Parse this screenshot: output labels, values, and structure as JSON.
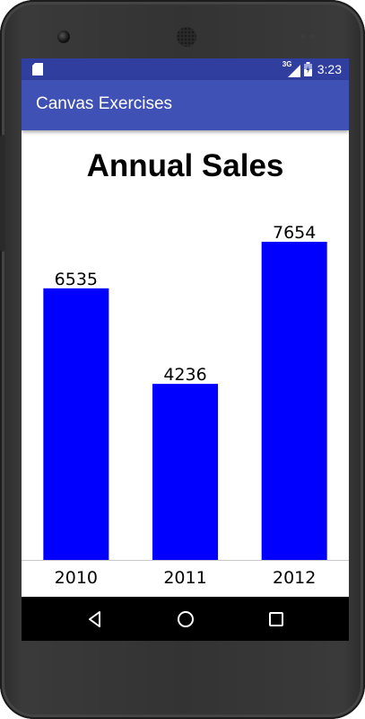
{
  "status_bar": {
    "network": "3G",
    "time": "3:23"
  },
  "app_bar": {
    "title": "Canvas Exercises"
  },
  "icons": {
    "sd_card": "sd-card-icon",
    "signal": "signal-icon",
    "battery": "battery-icon",
    "back": "back-icon",
    "home": "home-icon",
    "recents": "recents-icon"
  },
  "colors": {
    "status_bar": "#303f9f",
    "app_bar": "#3f51b5",
    "bar": "#0000ff",
    "baseline": "#c8c8c8"
  },
  "chart_data": {
    "type": "bar",
    "title": "Annual Sales",
    "categories": [
      "2010",
      "2011",
      "2012"
    ],
    "values": [
      6535,
      4236,
      7654
    ],
    "data_labels": [
      "6535",
      "4236",
      "7654"
    ],
    "xlabel": "",
    "ylabel": "",
    "ylim": [
      0,
      8780
    ],
    "grid": false,
    "legend": "none"
  }
}
